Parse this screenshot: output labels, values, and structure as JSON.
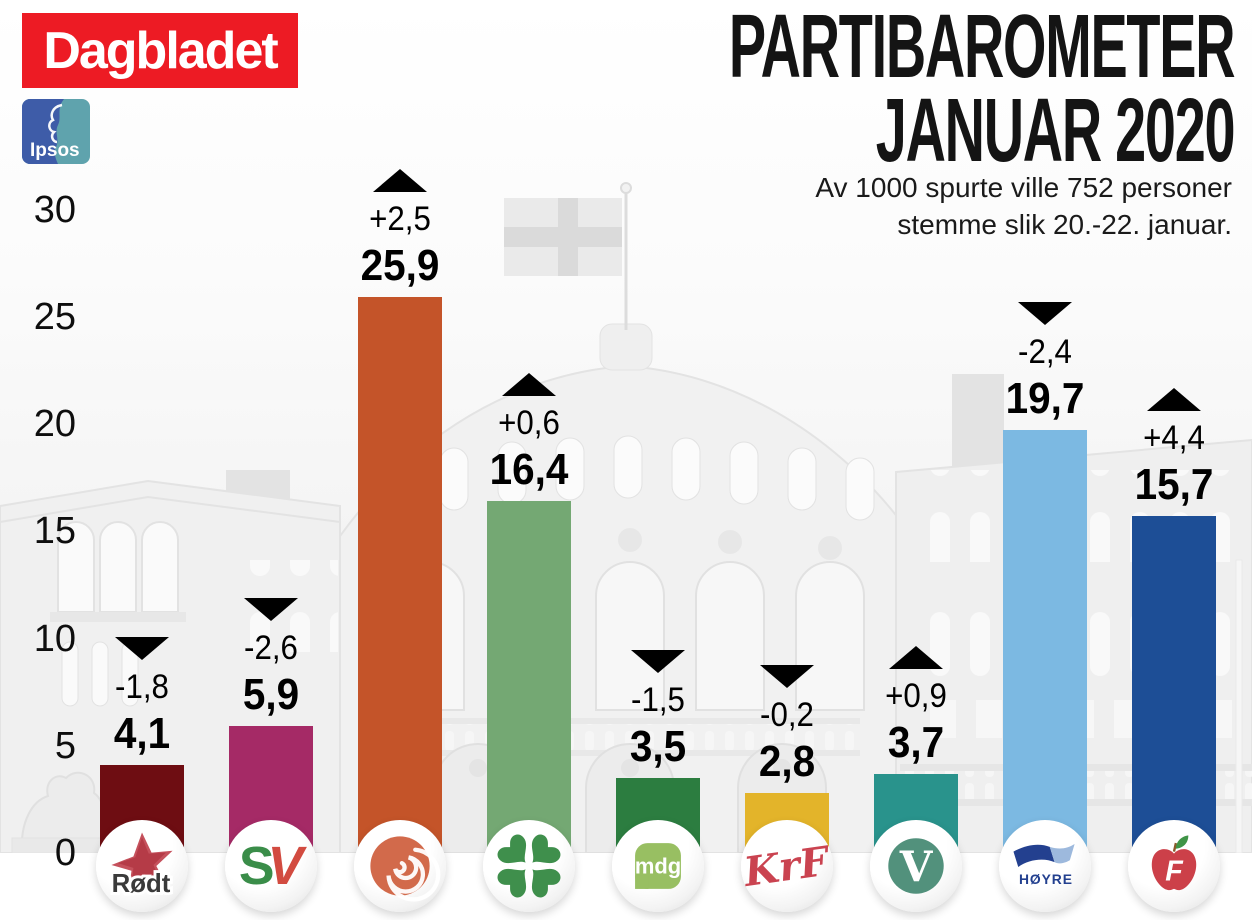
{
  "header": {
    "dagbladet_logo_text": "Dagbladet",
    "ipsos_logo_text": "Ipsos",
    "title_line1": "PARTIBAROMETER",
    "title_line2": "JANUAR 2020",
    "subtitle_line1": "Av 1000 spurte ville 752 personer",
    "subtitle_line2": "stemme slik 20.-22. januar."
  },
  "colors": {
    "dagbladet_red": "#ed1b24",
    "ipsos_blue": "#3e5ca8",
    "ipsos_teal": "#5fa3ad",
    "arrow_black": "#000000",
    "text_black": "#0e0e0e"
  },
  "chart_data": {
    "type": "bar",
    "title": "PARTIBAROMETER JANUAR 2020",
    "subtitle": "Av 1000 spurte ville 752 personer stemme slik 20.-22. januar.",
    "xlabel": "",
    "ylabel": "",
    "ylim": [
      0,
      30
    ],
    "yticks": [
      0,
      5,
      10,
      15,
      20,
      25,
      30
    ],
    "grid": false,
    "legend": "none",
    "value_format": "decimal comma, percent of votes",
    "categories": [
      "Rødt",
      "SV",
      "Ap",
      "Sp",
      "MDG",
      "KrF",
      "Venstre",
      "Høyre",
      "FrP"
    ],
    "values": [
      4.1,
      5.9,
      25.9,
      16.4,
      3.5,
      2.8,
      3.7,
      19.7,
      15.7
    ],
    "changes": [
      -1.8,
      -2.6,
      2.5,
      0.6,
      -1.5,
      -0.2,
      0.9,
      -2.4,
      4.4
    ],
    "bars": [
      {
        "id": "rodt",
        "name": "Rødt",
        "value": 4.1,
        "value_display": "4,1",
        "change": -1.8,
        "change_display": "-1,8",
        "direction": "down",
        "color": "#6e0d12",
        "icon": "rodt-star-icon",
        "logo_text": "Rødt"
      },
      {
        "id": "sv",
        "name": "SV",
        "value": 5.9,
        "value_display": "5,9",
        "change": -2.6,
        "change_display": "-2,6",
        "direction": "down",
        "color": "#a52a66",
        "icon": "sv-monogram-icon",
        "logo_text": "SV"
      },
      {
        "id": "ap",
        "name": "Ap",
        "value": 25.9,
        "value_display": "25,9",
        "change": 2.5,
        "change_display": "+2,5",
        "direction": "up",
        "color": "#c45429",
        "icon": "ap-rose-icon",
        "logo_text": ""
      },
      {
        "id": "sp",
        "name": "Sp",
        "value": 16.4,
        "value_display": "16,4",
        "change": 0.6,
        "change_display": "+0,6",
        "direction": "up",
        "color": "#74a873",
        "icon": "sp-clover-icon",
        "logo_text": ""
      },
      {
        "id": "mdg",
        "name": "MDG",
        "value": 3.5,
        "value_display": "3,5",
        "change": -1.5,
        "change_display": "-1,5",
        "direction": "down",
        "color": "#2c7d40",
        "icon": "mdg-badge-icon",
        "logo_text": "mdg"
      },
      {
        "id": "krf",
        "name": "KrF",
        "value": 2.8,
        "value_display": "2,8",
        "change": -0.2,
        "change_display": "-0,2",
        "direction": "down",
        "color": "#e3b42a",
        "icon": "krf-script-icon",
        "logo_text": "KrF"
      },
      {
        "id": "venstre",
        "name": "Venstre",
        "value": 3.7,
        "value_display": "3,7",
        "change": 0.9,
        "change_display": "+0,9",
        "direction": "up",
        "color": "#29938c",
        "icon": "venstre-v-icon",
        "logo_text": "V"
      },
      {
        "id": "hoyre",
        "name": "Høyre",
        "value": 19.7,
        "value_display": "19,7",
        "change": -2.4,
        "change_display": "-2,4",
        "direction": "down",
        "color": "#7cb9e2",
        "icon": "hoyre-flag-icon",
        "logo_text": "HØYRE"
      },
      {
        "id": "frp",
        "name": "FrP",
        "value": 15.7,
        "value_display": "15,7",
        "change": 4.4,
        "change_display": "+4,4",
        "direction": "up",
        "color": "#1d4e96",
        "icon": "frp-apple-icon",
        "logo_text": "F"
      }
    ]
  }
}
